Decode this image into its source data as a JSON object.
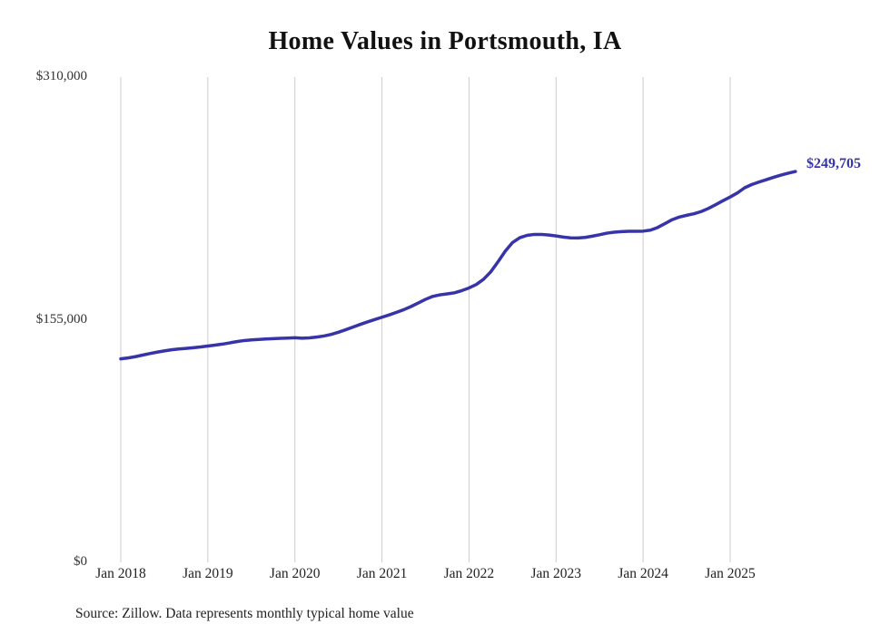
{
  "title": "Home Values in Portsmouth, IA",
  "source_note": "Source: Zillow. Data represents monthly typical home value",
  "end_label": "$249,705",
  "colors": {
    "line": "#3734a9",
    "grid": "#cccccc",
    "title_text": "#111111",
    "axis_text": "#333333"
  },
  "chart_data": {
    "type": "line",
    "title": "Home Values in Portsmouth, IA",
    "ylabel": "",
    "xlabel": "",
    "ylim": [
      0,
      310000
    ],
    "grid": "vertical-only",
    "legend": "none",
    "y_tick_labels": [
      "$0",
      "$155,000",
      "$310,000"
    ],
    "y_tick_values": [
      0,
      155000,
      310000
    ],
    "x_tick_labels": [
      "Jan 2018",
      "Jan 2019",
      "Jan 2020",
      "Jan 2021",
      "Jan 2022",
      "Jan 2023",
      "Jan 2024",
      "Jan 2025"
    ],
    "x_start_month": "2018-01",
    "x_end_month": "2025-10",
    "series": [
      {
        "name": "Monthly typical home value",
        "last_value": 249705,
        "values": [
          130000,
          130600,
          131400,
          132400,
          133400,
          134300,
          135100,
          135800,
          136300,
          136700,
          137100,
          137600,
          138200,
          138800,
          139400,
          140200,
          141000,
          141700,
          142100,
          142400,
          142700,
          142900,
          143100,
          143300,
          143500,
          143200,
          143400,
          143900,
          144600,
          145600,
          147000,
          148600,
          150300,
          152000,
          153600,
          155100,
          156600,
          158100,
          159700,
          161400,
          163400,
          165700,
          168000,
          169900,
          170900,
          171500,
          172200,
          173600,
          175300,
          177500,
          180800,
          185600,
          192000,
          198800,
          204300,
          207400,
          208900,
          209500,
          209500,
          209100,
          208500,
          207800,
          207300,
          207200,
          207600,
          208400,
          209300,
          210300,
          210900,
          211300,
          211500,
          211500,
          211600,
          212200,
          213900,
          216400,
          218900,
          220600,
          221700,
          222700,
          224100,
          226100,
          228500,
          231000,
          233400,
          236000,
          239300,
          241400,
          243000,
          244500,
          246000,
          247400,
          248600,
          249705
        ]
      }
    ]
  }
}
